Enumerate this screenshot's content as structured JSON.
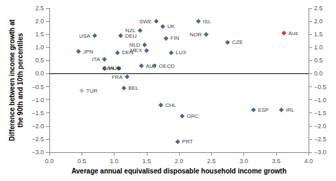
{
  "chart_data": {
    "type": "scatter",
    "marker": "diamond",
    "xlabel": "Average annual equivalised disposable household income growth",
    "ylabel": "Difference between income growth at\nthe 90th and 10th percentiles",
    "labels": [
      "USA",
      "JPN",
      "ITA",
      "HUN",
      "TUR",
      "DEU",
      "DEN",
      "CAN",
      "FRA",
      "BEL",
      "NZL",
      "NLD",
      "MEX",
      "AUT",
      "OECD",
      "SWE",
      "UK",
      "FIN",
      "LUX",
      "CHL",
      "GRC",
      "PRT",
      "ISL",
      "NOR",
      "CZE",
      "ESP",
      "IRL",
      "Aus"
    ],
    "x": [
      0.7,
      0.45,
      0.85,
      0.85,
      0.5,
      1.1,
      1.05,
      1.07,
      1.2,
      1.15,
      1.4,
      1.47,
      1.5,
      1.42,
      1.62,
      1.65,
      1.75,
      1.8,
      1.88,
      1.72,
      2.05,
      1.98,
      2.3,
      2.42,
      2.75,
      3.15,
      3.58,
      3.62
    ],
    "values": [
      1.45,
      0.85,
      0.55,
      0.2,
      -0.65,
      1.45,
      0.8,
      0.2,
      -0.12,
      -0.55,
      1.65,
      1.1,
      0.88,
      0.3,
      0.3,
      2.0,
      1.8,
      1.35,
      0.8,
      -1.2,
      -1.62,
      -2.6,
      2.0,
      1.5,
      1.2,
      -1.38,
      -1.38,
      1.55
    ],
    "colors": [
      "#1F3D7A",
      "#1F3D7A",
      "#1F3D7A",
      "#1F3D7A",
      "#AAAAAA",
      "#1F3D7A",
      "#1F3D7A",
      "#1F3D7A",
      "#1F3D7A",
      "#1F3D7A",
      "#1F3D7A",
      "#1F3D7A",
      "#1F3D7A",
      "#1F3D7A",
      "#228B22",
      "#1F3D7A",
      "#1F3D7A",
      "#1F3D7A",
      "#1F3D7A",
      "#1F3D7A",
      "#1F3D7A",
      "#1F3D7A",
      "#1F3D7A",
      "#1F3D7A",
      "#1F3D7A",
      "#1F3D7A",
      "#1F3D7A",
      "#CC0000"
    ],
    "xlim": [
      0.0,
      4.0
    ],
    "ylim": [
      -3.0,
      2.5
    ],
    "xticks": [
      {
        "value": 0.0,
        "label": "0.0"
      },
      {
        "value": 0.5,
        "label": "0.5"
      },
      {
        "value": 1.0,
        "label": "1.0"
      },
      {
        "value": 1.5,
        "label": "1.5"
      },
      {
        "value": 2.0,
        "label": "2.0"
      },
      {
        "value": 2.5,
        "label": "2.5"
      },
      {
        "value": 3.0,
        "label": "3.0"
      },
      {
        "value": 3.5,
        "label": "3.5"
      },
      {
        "value": 4.0,
        "label": "4.0"
      }
    ],
    "yticks": [
      {
        "value": -3.0,
        "label": "−3.0"
      },
      {
        "value": -2.5,
        "label": "−2.5"
      },
      {
        "value": -2.0,
        "label": "−2.0"
      },
      {
        "value": -1.5,
        "label": "−1.5"
      },
      {
        "value": -1.0,
        "label": "−1.0"
      },
      {
        "value": -0.5,
        "label": "−0.5"
      },
      {
        "value": 0.0,
        "label": "0.0"
      },
      {
        "value": 0.5,
        "label": "0.5"
      },
      {
        "value": 1.0,
        "label": "1.0"
      },
      {
        "value": 1.5,
        "label": "1.5"
      },
      {
        "value": 2.0,
        "label": "2.0"
      },
      {
        "value": 2.5,
        "label": "2.5"
      }
    ],
    "y2lim": [
      -3.0,
      2.5
    ],
    "y2ticks": [
      {
        "value": -3.0,
        "label": "−3.0"
      },
      {
        "value": -2.5,
        "label": "−2.5"
      },
      {
        "value": -2.0,
        "label": "−2.0"
      },
      {
        "value": -1.5,
        "label": "−1.5"
      },
      {
        "value": -1.0,
        "label": "−1.0"
      },
      {
        "value": -0.5,
        "label": "−0.5"
      },
      {
        "value": 0.0,
        "label": "0.0"
      },
      {
        "value": 0.5,
        "label": "0.5"
      },
      {
        "value": 1.0,
        "label": "1.0"
      },
      {
        "value": 1.5,
        "label": "1.5"
      },
      {
        "value": 2.0,
        "label": "2.0"
      },
      {
        "value": 2.5,
        "label": "2.5"
      }
    ],
    "hline": 0,
    "grid": false
  }
}
